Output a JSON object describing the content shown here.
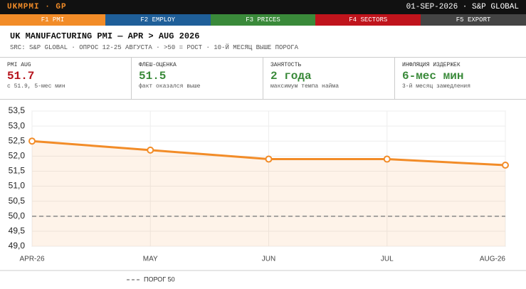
{
  "header": {
    "ticker": "UKMPMI · GP",
    "date": "01-SEP-2026 · S&P GLOBAL"
  },
  "tabs": [
    "F1 PMI",
    "F2 EMPLOY",
    "F3 PRICES",
    "F4 SECTORS",
    "F5 EXPORT"
  ],
  "title": "UK MANUFACTURING PMI — APR > AUG 2026",
  "subtitle": "SRC: S&P GLOBAL · ОПРОС 12-25 АВГУСТА · >50 = РОСТ · 10-Й МЕСЯЦ ВЫШЕ ПОРОГА",
  "kpis": [
    {
      "label": "PMI AUG",
      "value": "51.7",
      "note": "с 51.9, 5-мес мин"
    },
    {
      "label": "ФЛЕШ-ОЦЕНКА",
      "value": "51.5",
      "note": "факт оказался выше"
    },
    {
      "label": "ЗАНЯТОСТЬ",
      "value": "2 года",
      "note": "максимум темпа найма"
    },
    {
      "label": "ИНФЛЯЦИЯ ИЗДЕРЖЕК",
      "value": "6-мес мин",
      "note": "3-й месяц замедления"
    }
  ],
  "chart_data": {
    "type": "line",
    "categories": [
      "APR-26",
      "MAY",
      "JUN",
      "JUL",
      "AUG-26"
    ],
    "series": [
      {
        "color": "#f28c28",
        "values": [
          52.5,
          52.2,
          51.9,
          51.9,
          51.7
        ]
      }
    ],
    "ylim": [
      49.0,
      53.5
    ],
    "yticks": [
      {
        "value": 53.5,
        "label": "53,5"
      },
      {
        "value": 53.0,
        "label": "53,0"
      },
      {
        "value": 52.5,
        "label": "52,5"
      },
      {
        "value": 52.0,
        "label": "52,0"
      },
      {
        "value": 51.5,
        "label": "51,5"
      },
      {
        "value": 51.0,
        "label": "51,0"
      },
      {
        "value": 50.5,
        "label": "50,5"
      },
      {
        "value": 50.0,
        "label": "50,0"
      },
      {
        "value": 49.5,
        "label": "49,5"
      },
      {
        "value": 49.0,
        "label": "49,0"
      }
    ],
    "grid": true,
    "threshold": {
      "value": 50,
      "label": "ПОРОГ 50"
    }
  }
}
